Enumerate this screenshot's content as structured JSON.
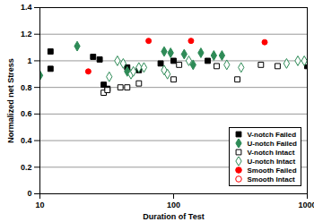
{
  "chart_data": {
    "type": "scatter",
    "x_label": "Duration of Test",
    "y_label": "Normalized net Stress",
    "log": "x",
    "grid": true,
    "legend": "lower right",
    "xlim": [
      10,
      1000
    ],
    "xticks": [
      10,
      100,
      1000
    ],
    "ylim": [
      0,
      1.4
    ],
    "yticks": [
      0,
      0.2,
      0.4,
      0.6,
      0.8,
      1,
      1.2,
      1.4
    ],
    "series": [
      {
        "name": "V-notch Failed",
        "color": "#000000",
        "marker": "square",
        "x": [
          12,
          12,
          25,
          28,
          30,
          32,
          45,
          55,
          80,
          100,
          180,
          1000
        ],
        "values": [
          1.07,
          0.94,
          1.03,
          1.01,
          0.82,
          0.79,
          0.95,
          0.93,
          0.98,
          1.0,
          1.0,
          0.96
        ]
      },
      {
        "name": "U-notch Failed",
        "color": "#2E8B57",
        "marker": "diamond",
        "x": [
          10,
          19,
          45,
          85,
          95,
          120,
          140,
          160,
          200,
          230
        ],
        "values": [
          0.89,
          1.11,
          0.92,
          1.07,
          1.06,
          1.05,
          0.97,
          1.06,
          1.04,
          1.04
        ]
      },
      {
        "name": "V-notch Intact",
        "color": "#000000",
        "marker": "square-open",
        "x": [
          30,
          32,
          40,
          45,
          55,
          100,
          110,
          210,
          300,
          450,
          600,
          1000
        ],
        "values": [
          0.76,
          0.78,
          0.8,
          0.8,
          0.83,
          0.86,
          0.97,
          0.96,
          0.86,
          0.97,
          0.96,
          0.99
        ]
      },
      {
        "name": "U-notch Intact",
        "color": "#2E8B57",
        "marker": "diamond-open",
        "x": [
          33,
          38,
          42,
          48,
          50,
          55,
          60,
          85,
          90,
          130,
          250,
          320,
          700,
          850,
          950
        ],
        "values": [
          0.88,
          1.0,
          0.98,
          0.9,
          0.92,
          0.95,
          0.95,
          0.93,
          0.9,
          1.0,
          0.97,
          0.95,
          0.98,
          1.0,
          1.0
        ]
      },
      {
        "name": "Smooth Failed",
        "color": "#FF0000",
        "marker": "circle",
        "x": [
          23,
          65,
          135,
          480
        ],
        "values": [
          0.92,
          1.15,
          1.15,
          1.14
        ]
      },
      {
        "name": "Smooth Intact",
        "color": "#FF0000",
        "marker": "circle-open",
        "x": [],
        "values": []
      }
    ]
  }
}
